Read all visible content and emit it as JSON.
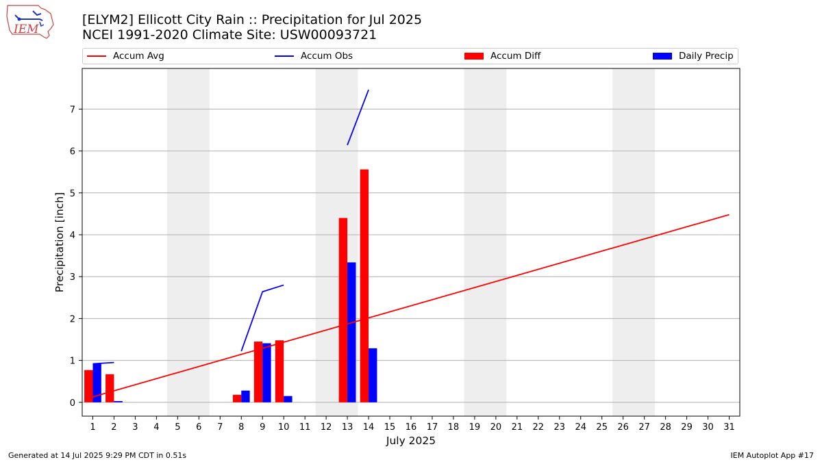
{
  "logo": {
    "text": "IEM",
    "colors": {
      "outline": "#d04040",
      "mark": "#2030c0",
      "text": "#d04040"
    }
  },
  "header": {
    "title": "[ELYM2] Ellicott City Rain :: Precipitation for Jul 2025",
    "subtitle": "NCEI 1991-2020 Climate Site: USW00093721"
  },
  "legend": [
    {
      "label": "Accum Avg",
      "kind": "line",
      "color": "#ff0000"
    },
    {
      "label": "Accum Obs",
      "kind": "line",
      "color": "#0000ff"
    },
    {
      "label": "Accum Diff",
      "kind": "bar",
      "color": "#ff0000"
    },
    {
      "label": "Daily Precip",
      "kind": "bar",
      "color": "#0000ff"
    }
  ],
  "footer": {
    "left": "Generated at 14 Jul 2025 9:29 PM CDT in 0.51s",
    "right": "IEM Autoplot App #17"
  },
  "chart_data": {
    "type": "bar",
    "xlabel": "July 2025",
    "ylabel": "Precipitation [inch]",
    "xlim": [
      0.5,
      31.5
    ],
    "ylim": [
      -0.33,
      7.97
    ],
    "x_ticks": [
      1,
      2,
      3,
      4,
      5,
      6,
      7,
      8,
      9,
      10,
      11,
      12,
      13,
      14,
      15,
      16,
      17,
      18,
      19,
      20,
      21,
      22,
      23,
      24,
      25,
      26,
      27,
      28,
      29,
      30,
      31
    ],
    "y_ticks": [
      0,
      1,
      2,
      3,
      4,
      5,
      6,
      7
    ],
    "grid": "horizontal",
    "legend_position": "top",
    "weekend_spans": [
      [
        4.5,
        6.5
      ],
      [
        11.5,
        13.5
      ],
      [
        18.5,
        20.5
      ],
      [
        25.5,
        27.5
      ]
    ],
    "series": [
      {
        "name": "Accum Avg",
        "kind": "line",
        "color": "#ff0000",
        "x": [
          1,
          31
        ],
        "y": [
          0.13,
          4.48
        ]
      },
      {
        "name": "Accum Obs",
        "kind": "line",
        "color": "#0000ff",
        "segments": [
          {
            "x": [
              1,
              2
            ],
            "y": [
              0.92,
              0.95
            ]
          },
          {
            "x": [
              8,
              9,
              10
            ],
            "y": [
              1.22,
              2.64,
              2.8
            ]
          },
          {
            "x": [
              13,
              14
            ],
            "y": [
              6.14,
              7.46
            ]
          }
        ]
      },
      {
        "name": "Accum Diff",
        "kind": "bar",
        "color": "#ff0000",
        "x": [
          1,
          2,
          8,
          9,
          10,
          13,
          14
        ],
        "values": [
          0.77,
          0.67,
          0.18,
          1.45,
          1.48,
          4.4,
          5.56
        ]
      },
      {
        "name": "Daily Precip",
        "kind": "bar",
        "color": "#0000ff",
        "x": [
          1,
          2,
          8,
          9,
          10,
          13,
          14
        ],
        "values": [
          0.92,
          0.03,
          0.28,
          1.41,
          0.15,
          3.34,
          1.29
        ]
      }
    ]
  }
}
